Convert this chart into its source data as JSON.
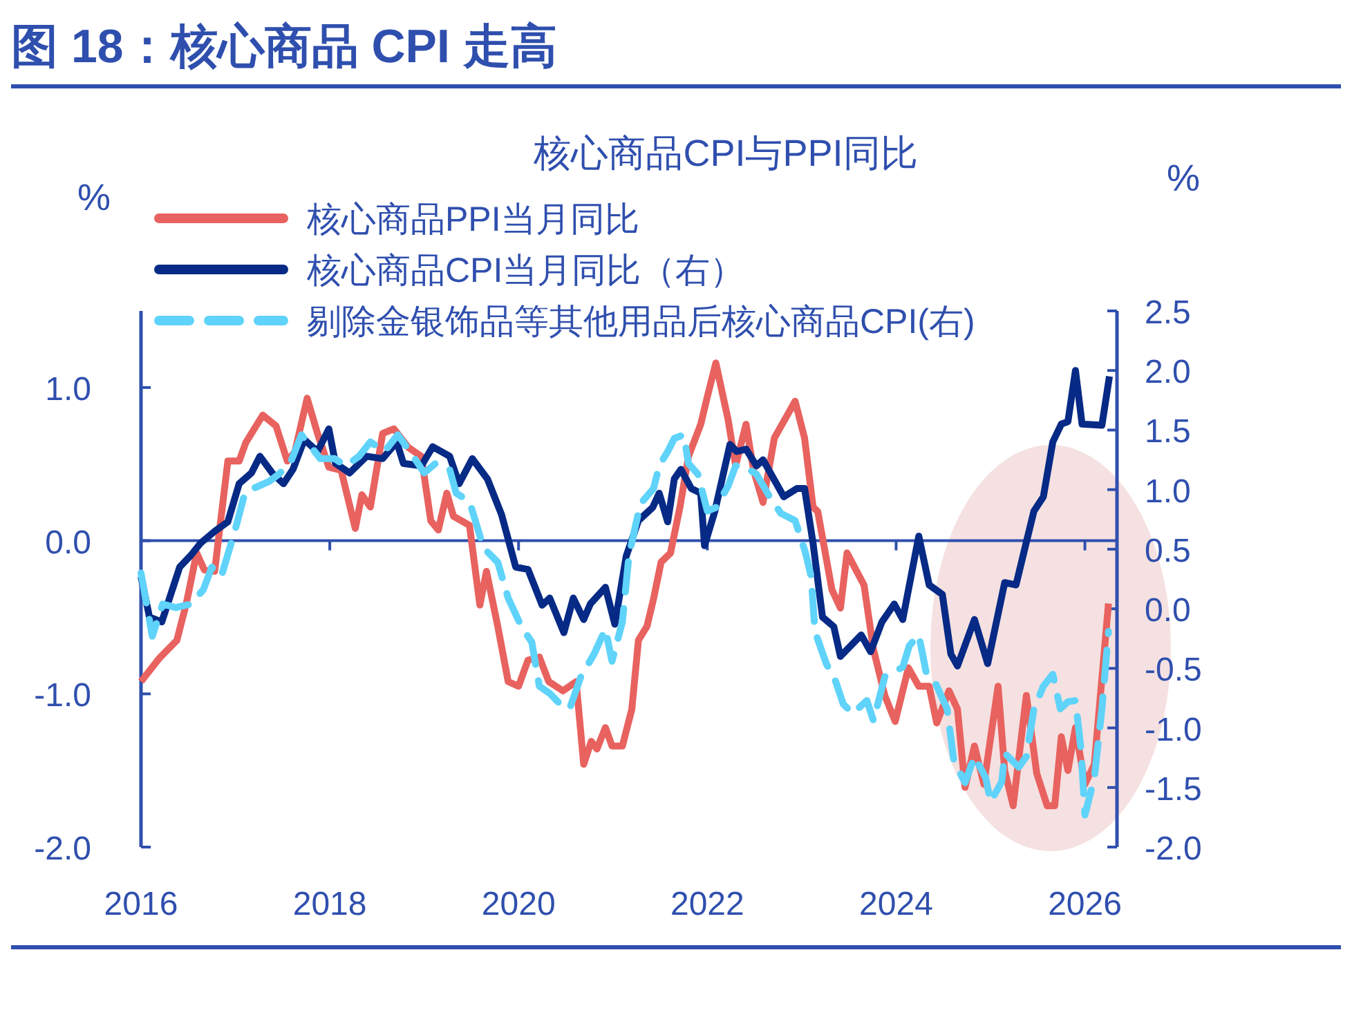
{
  "chart_data": {
    "type": "line",
    "title": "图 18：核心商品 CPI 走高",
    "subtitle": "核心商品CPI与PPI同比",
    "ylabel": "%",
    "y2label": "%",
    "xlim": [
      2016,
      2026.34
    ],
    "xticks": [
      2016,
      2018,
      2020,
      2022,
      2024,
      2026
    ],
    "ylim": [
      -2.0,
      1.5
    ],
    "yticks": [
      {
        "value": 1,
        "label": "1.0"
      },
      {
        "value": 0,
        "label": "0.0"
      },
      {
        "value": -1,
        "label": "-1.0"
      },
      {
        "value": -2,
        "label": "-2.0"
      }
    ],
    "y2lim": [
      -2.0,
      2.5
    ],
    "y2ticks": [
      {
        "value": 2.5,
        "label": "2.5"
      },
      {
        "value": 2,
        "label": "2.0"
      },
      {
        "value": 1.5,
        "label": "1.5"
      },
      {
        "value": 1,
        "label": "1.0"
      },
      {
        "value": 0.5,
        "label": "0.5"
      },
      {
        "value": 0,
        "label": "0.0"
      },
      {
        "value": -0.5,
        "label": "-0.5"
      },
      {
        "value": -1,
        "label": "-1.0"
      },
      {
        "value": -1.5,
        "label": "-1.5"
      },
      {
        "value": -2,
        "label": "-2.0"
      }
    ],
    "grid": false,
    "ref_lines": [
      {
        "axis": "y",
        "value": 0
      }
    ],
    "legend": "top left",
    "marker": "none",
    "series": [
      {
        "name": "核心商品PPI当月同比",
        "color": "#e8625f",
        "line_style": "solid",
        "x": [
          2016.0,
          2016.19,
          2016.38,
          2016.48,
          2016.59,
          2016.67,
          2016.78,
          2016.92,
          2017.04,
          2017.11,
          2017.29,
          2017.43,
          2017.55,
          2017.63,
          2017.76,
          2017.87,
          2017.99,
          2018.12,
          2018.27,
          2018.34,
          2018.43,
          2018.56,
          2018.68,
          2018.83,
          2018.97,
          2019.07,
          2019.15,
          2019.24,
          2019.31,
          2019.48,
          2019.59,
          2019.66,
          2019.78,
          2019.89,
          2020.0,
          2020.1,
          2020.22,
          2020.32,
          2020.47,
          2020.61,
          2020.69,
          2020.77,
          2020.83,
          2020.92,
          2020.99,
          2021.1,
          2021.2,
          2021.27,
          2021.36,
          2021.43,
          2021.51,
          2021.61,
          2021.71,
          2021.8,
          2021.93,
          2022.0,
          2022.09,
          2022.22,
          2022.3,
          2022.41,
          2022.49,
          2022.59,
          2022.71,
          2022.93,
          2023.03,
          2023.12,
          2023.17,
          2023.32,
          2023.41,
          2023.48,
          2023.66,
          2023.76,
          2023.88,
          2023.99,
          2024.13,
          2024.24,
          2024.35,
          2024.43,
          2024.56,
          2024.65,
          2024.73,
          2024.83,
          2024.93,
          2025.08,
          2025.15,
          2025.24,
          2025.38,
          2025.49,
          2025.6,
          2025.68,
          2025.75,
          2025.82,
          2025.9,
          2026.0,
          2026.1,
          2026.19,
          2026.25
        ],
        "values": [
          -0.92,
          -0.77,
          -0.65,
          -0.41,
          -0.08,
          -0.19,
          -0.2,
          0.52,
          0.52,
          0.64,
          0.82,
          0.75,
          0.52,
          0.58,
          0.93,
          0.7,
          0.48,
          0.46,
          0.08,
          0.3,
          0.22,
          0.7,
          0.73,
          0.61,
          0.55,
          0.13,
          0.07,
          0.31,
          0.16,
          0.1,
          -0.42,
          -0.2,
          -0.56,
          -0.92,
          -0.95,
          -0.78,
          -0.76,
          -0.92,
          -0.98,
          -0.92,
          -1.46,
          -1.31,
          -1.36,
          -1.22,
          -1.34,
          -1.34,
          -1.1,
          -0.65,
          -0.56,
          -0.38,
          -0.14,
          -0.08,
          0.22,
          0.55,
          0.76,
          0.94,
          1.16,
          0.79,
          0.49,
          0.76,
          0.46,
          0.25,
          0.67,
          0.91,
          0.67,
          0.22,
          0.19,
          -0.32,
          -0.44,
          -0.08,
          -0.29,
          -0.71,
          -1.01,
          -1.18,
          -0.83,
          -0.95,
          -0.95,
          -1.19,
          -0.98,
          -1.1,
          -1.61,
          -1.34,
          -1.59,
          -0.95,
          -1.5,
          -1.73,
          -1.01,
          -1.52,
          -1.73,
          -1.73,
          -1.28,
          -1.5,
          -1.22,
          -1.59,
          -1.46,
          -0.83,
          -0.41
        ]
      },
      {
        "name": "核心商品CPI当月同比（右）",
        "color": "#062a85",
        "axis": "y2",
        "line_style": "solid",
        "x": [
          2016.0,
          2016.09,
          2016.22,
          2016.41,
          2016.53,
          2016.63,
          2016.78,
          2016.92,
          2017.04,
          2017.17,
          2017.26,
          2017.39,
          2017.51,
          2017.61,
          2017.73,
          2017.87,
          2017.99,
          2018.06,
          2018.21,
          2018.39,
          2018.56,
          2018.71,
          2018.78,
          2018.97,
          2019.09,
          2019.27,
          2019.37,
          2019.51,
          2019.67,
          2019.82,
          2019.97,
          2020.1,
          2020.25,
          2020.33,
          2020.48,
          2020.58,
          2020.69,
          2020.76,
          2020.92,
          2021.02,
          2021.14,
          2021.27,
          2021.42,
          2021.49,
          2021.58,
          2021.65,
          2021.72,
          2021.83,
          2021.93,
          2021.97,
          2022.08,
          2022.24,
          2022.31,
          2022.41,
          2022.52,
          2022.59,
          2022.81,
          2022.95,
          2023.03,
          2023.12,
          2023.22,
          2023.34,
          2023.41,
          2023.63,
          2023.73,
          2023.85,
          2023.98,
          2024.07,
          2024.24,
          2024.35,
          2024.49,
          2024.58,
          2024.65,
          2024.83,
          2024.97,
          2025.15,
          2025.27,
          2025.38,
          2025.46,
          2025.56,
          2025.66,
          2025.75,
          2025.82,
          2025.9,
          2025.97,
          2026.18,
          2026.26
        ],
        "values": [
          0.27,
          -0.07,
          -0.11,
          0.35,
          0.45,
          0.55,
          0.65,
          0.73,
          1.05,
          1.14,
          1.28,
          1.14,
          1.05,
          1.17,
          1.42,
          1.32,
          1.51,
          1.22,
          1.14,
          1.28,
          1.26,
          1.4,
          1.22,
          1.2,
          1.36,
          1.28,
          1.05,
          1.26,
          1.09,
          0.79,
          0.35,
          0.33,
          0.03,
          0.09,
          -0.2,
          0.09,
          -0.09,
          0.04,
          0.18,
          -0.13,
          0.44,
          0.74,
          0.85,
          0.97,
          0.73,
          1.09,
          1.17,
          1.01,
          0.97,
          0.53,
          0.82,
          1.38,
          1.32,
          1.34,
          1.2,
          1.25,
          0.94,
          1.01,
          1.01,
          0.55,
          -0.07,
          -0.15,
          -0.4,
          -0.22,
          -0.36,
          -0.11,
          0.04,
          -0.09,
          0.61,
          0.2,
          0.12,
          -0.38,
          -0.48,
          -0.09,
          -0.46,
          0.22,
          0.2,
          0.56,
          0.82,
          0.94,
          1.4,
          1.55,
          1.57,
          2.0,
          1.55,
          1.54,
          1.95
        ]
      },
      {
        "name": "剔除金银饰品等其他用品后核心商品CPI(右)",
        "color": "#5fd3fa",
        "axis": "y2",
        "line_style": "dashed",
        "x": [
          2016.0,
          2016.12,
          2016.23,
          2016.37,
          2016.53,
          2016.66,
          2016.75,
          2016.85,
          2017.0,
          2017.1,
          2017.19,
          2017.36,
          2017.46,
          2017.58,
          2017.7,
          2017.9,
          2018.05,
          2018.17,
          2018.31,
          2018.43,
          2018.58,
          2018.72,
          2018.86,
          2019.0,
          2019.12,
          2019.27,
          2019.34,
          2019.48,
          2019.63,
          2019.78,
          2019.89,
          2020.03,
          2020.14,
          2020.22,
          2020.33,
          2020.44,
          2020.54,
          2020.66,
          2020.8,
          2020.92,
          2020.99,
          2021.1,
          2021.17,
          2021.29,
          2021.43,
          2021.49,
          2021.58,
          2021.65,
          2021.75,
          2021.8,
          2021.9,
          2022.0,
          2022.09,
          2022.22,
          2022.3,
          2022.38,
          2022.52,
          2022.66,
          2022.78,
          2022.93,
          2023.04,
          2023.1,
          2023.14,
          2023.26,
          2023.36,
          2023.44,
          2023.54,
          2023.69,
          2023.76,
          2023.88,
          2023.95,
          2024.07,
          2024.14,
          2024.24,
          2024.32,
          2024.42,
          2024.54,
          2024.61,
          2024.73,
          2024.83,
          2024.95,
          2025.0,
          2025.12,
          2025.15,
          2025.3,
          2025.38,
          2025.46,
          2025.56,
          2025.66,
          2025.74,
          2025.82,
          2025.9,
          2025.96,
          2026.0,
          2026.1,
          2026.18,
          2026.25
        ],
        "values": [
          0.3,
          -0.23,
          0.04,
          0.01,
          0.04,
          0.16,
          0.35,
          0.27,
          0.67,
          0.97,
          1.01,
          1.07,
          1.13,
          1.22,
          1.46,
          1.26,
          1.26,
          1.2,
          1.28,
          1.4,
          1.32,
          1.46,
          1.31,
          1.14,
          1.22,
          1.17,
          0.97,
          0.9,
          0.51,
          0.39,
          0.09,
          -0.15,
          -0.28,
          -0.65,
          -0.71,
          -0.8,
          -0.84,
          -0.57,
          -0.38,
          -0.17,
          -0.44,
          -0.11,
          0.45,
          0.88,
          1.01,
          1.2,
          1.32,
          1.43,
          1.46,
          1.22,
          1.13,
          0.82,
          0.85,
          1.03,
          1.2,
          1.2,
          1.13,
          0.94,
          0.8,
          0.74,
          0.47,
          0.27,
          -0.19,
          -0.46,
          -0.61,
          -0.8,
          -0.88,
          -0.77,
          -0.94,
          -0.57,
          -0.54,
          -0.49,
          -0.31,
          -0.22,
          -0.54,
          -0.63,
          -0.84,
          -1.27,
          -1.46,
          -1.24,
          -1.42,
          -1.62,
          -1.45,
          -1.21,
          -1.33,
          -1.24,
          -0.84,
          -0.65,
          -0.55,
          -0.84,
          -0.78,
          -0.77,
          -1.19,
          -1.73,
          -1.42,
          -0.84,
          -0.19
        ]
      }
    ]
  }
}
